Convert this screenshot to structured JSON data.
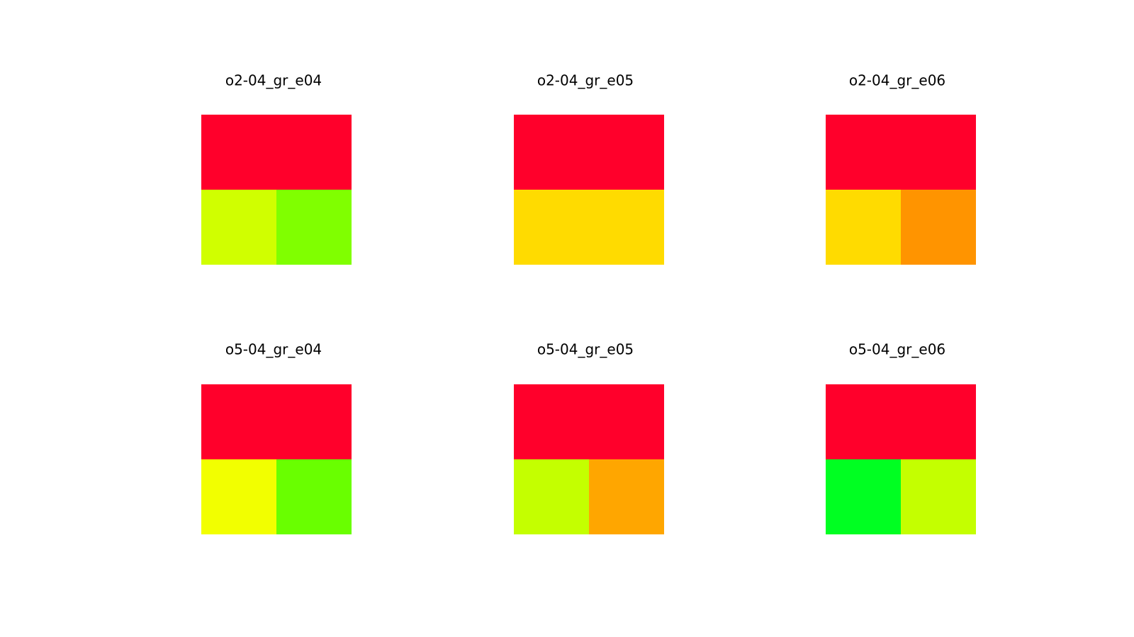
{
  "figure": {
    "background": "#ffffff"
  },
  "chart_data": [
    {
      "type": "heatmap",
      "title": "o2-04_gr_e04",
      "cells": [
        {
          "row": 0,
          "col": 0,
          "colspan": 2,
          "color": "#ff002b"
        },
        {
          "row": 1,
          "col": 0,
          "colspan": 1,
          "color": "#d0ff00"
        },
        {
          "row": 1,
          "col": 1,
          "colspan": 1,
          "color": "#80ff00"
        }
      ]
    },
    {
      "type": "heatmap",
      "title": "o2-04_gr_e05",
      "cells": [
        {
          "row": 0,
          "col": 0,
          "colspan": 2,
          "color": "#ff002b"
        },
        {
          "row": 1,
          "col": 0,
          "colspan": 2,
          "color": "#ffdb00"
        }
      ]
    },
    {
      "type": "heatmap",
      "title": "o2-04_gr_e06",
      "cells": [
        {
          "row": 0,
          "col": 0,
          "colspan": 2,
          "color": "#ff002b"
        },
        {
          "row": 1,
          "col": 0,
          "colspan": 1,
          "color": "#ffdb00"
        },
        {
          "row": 1,
          "col": 1,
          "colspan": 1,
          "color": "#ff9400"
        }
      ]
    },
    {
      "type": "heatmap",
      "title": "o5-04_gr_e04",
      "cells": [
        {
          "row": 0,
          "col": 0,
          "colspan": 2,
          "color": "#ff002b"
        },
        {
          "row": 1,
          "col": 0,
          "colspan": 1,
          "color": "#f2ff00"
        },
        {
          "row": 1,
          "col": 1,
          "colspan": 1,
          "color": "#69ff00"
        }
      ]
    },
    {
      "type": "heatmap",
      "title": "o5-04_gr_e05",
      "cells": [
        {
          "row": 0,
          "col": 0,
          "colspan": 2,
          "color": "#ff002b"
        },
        {
          "row": 1,
          "col": 0,
          "colspan": 1,
          "color": "#c4ff00"
        },
        {
          "row": 1,
          "col": 1,
          "colspan": 1,
          "color": "#ffa600"
        }
      ]
    },
    {
      "type": "heatmap",
      "title": "o5-04_gr_e06",
      "cells": [
        {
          "row": 0,
          "col": 0,
          "colspan": 2,
          "color": "#ff002b"
        },
        {
          "row": 1,
          "col": 0,
          "colspan": 1,
          "color": "#00ff22"
        },
        {
          "row": 1,
          "col": 1,
          "colspan": 1,
          "color": "#c4ff00"
        }
      ]
    }
  ]
}
